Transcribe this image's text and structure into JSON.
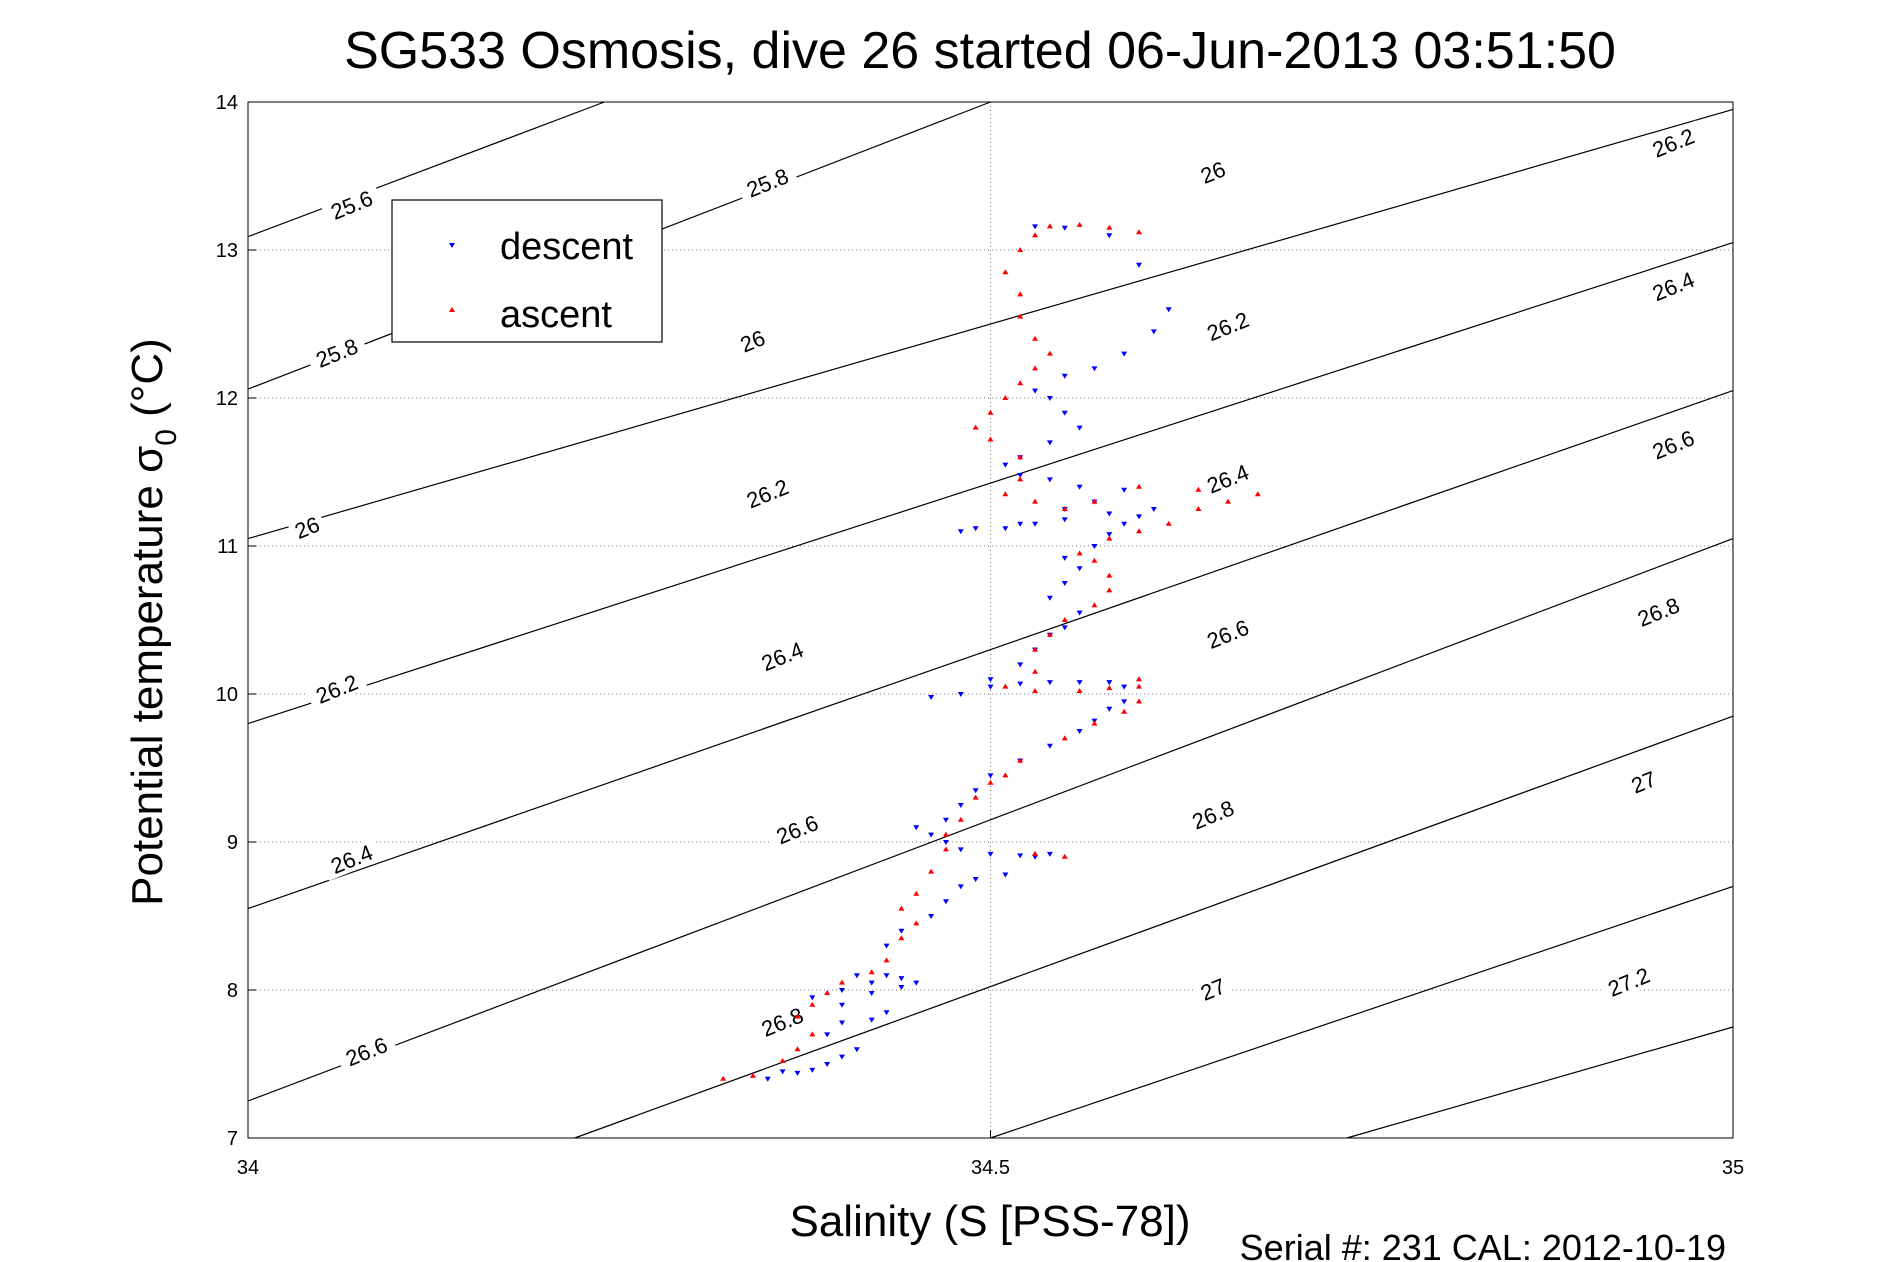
{
  "chart_data": {
    "type": "scatter",
    "title": "SG533 Osmosis, dive 26 started 06-Jun-2013 03:51:50",
    "xlabel": "Salinity (S [PSS-78])",
    "ylabel_main": "Potential temperature ",
    "ylabel_sigma": "σ",
    "ylabel_sub": "0",
    "ylabel_unit": " (°C)",
    "xlim": [
      34,
      35
    ],
    "ylim": [
      7,
      14
    ],
    "xticks": [
      "34",
      "34.5",
      "35"
    ],
    "yticks": [
      "7",
      "8",
      "9",
      "10",
      "11",
      "12",
      "13",
      "14"
    ],
    "grid": true,
    "legend_position": "top-left",
    "series": [
      {
        "name": "descent",
        "color": "#0000ff",
        "marker": "triangle-down",
        "points": [
          [
            34.35,
            7.4
          ],
          [
            34.36,
            7.45
          ],
          [
            34.37,
            7.44
          ],
          [
            34.38,
            7.46
          ],
          [
            34.39,
            7.5
          ],
          [
            34.4,
            7.55
          ],
          [
            34.41,
            7.6
          ],
          [
            34.39,
            7.7
          ],
          [
            34.4,
            7.78
          ],
          [
            34.42,
            7.8
          ],
          [
            34.43,
            7.85
          ],
          [
            34.4,
            7.9
          ],
          [
            34.38,
            7.95
          ],
          [
            34.4,
            8.0
          ],
          [
            34.42,
            7.98
          ],
          [
            34.44,
            8.02
          ],
          [
            34.45,
            8.05
          ],
          [
            34.44,
            8.08
          ],
          [
            34.43,
            8.1
          ],
          [
            34.42,
            8.05
          ],
          [
            34.41,
            8.1
          ],
          [
            34.43,
            8.3
          ],
          [
            34.44,
            8.4
          ],
          [
            34.46,
            8.5
          ],
          [
            34.47,
            8.6
          ],
          [
            34.48,
            8.7
          ],
          [
            34.49,
            8.75
          ],
          [
            34.51,
            8.78
          ],
          [
            34.53,
            8.9
          ],
          [
            34.54,
            8.92
          ],
          [
            34.52,
            8.91
          ],
          [
            34.5,
            8.92
          ],
          [
            34.48,
            8.95
          ],
          [
            34.47,
            9.0
          ],
          [
            34.46,
            9.05
          ],
          [
            34.45,
            9.1
          ],
          [
            34.47,
            9.15
          ],
          [
            34.48,
            9.25
          ],
          [
            34.49,
            9.35
          ],
          [
            34.5,
            9.45
          ],
          [
            34.52,
            9.55
          ],
          [
            34.54,
            9.65
          ],
          [
            34.56,
            9.75
          ],
          [
            34.57,
            9.82
          ],
          [
            34.58,
            9.9
          ],
          [
            34.59,
            9.95
          ],
          [
            34.59,
            10.05
          ],
          [
            34.58,
            10.08
          ],
          [
            34.56,
            10.08
          ],
          [
            34.54,
            10.08
          ],
          [
            34.52,
            10.07
          ],
          [
            34.5,
            10.05
          ],
          [
            34.48,
            10.0
          ],
          [
            34.46,
            9.98
          ],
          [
            34.5,
            10.1
          ],
          [
            34.52,
            10.2
          ],
          [
            34.53,
            10.3
          ],
          [
            34.54,
            10.4
          ],
          [
            34.55,
            10.45
          ],
          [
            34.56,
            10.55
          ],
          [
            34.54,
            10.65
          ],
          [
            34.55,
            10.75
          ],
          [
            34.56,
            10.85
          ],
          [
            34.55,
            10.92
          ],
          [
            34.57,
            11.0
          ],
          [
            34.58,
            11.08
          ],
          [
            34.59,
            11.15
          ],
          [
            34.6,
            11.2
          ],
          [
            34.61,
            11.25
          ],
          [
            34.58,
            11.22
          ],
          [
            34.55,
            11.18
          ],
          [
            34.52,
            11.15
          ],
          [
            34.49,
            11.12
          ],
          [
            34.48,
            11.1
          ],
          [
            34.51,
            11.12
          ],
          [
            34.53,
            11.15
          ],
          [
            34.55,
            11.25
          ],
          [
            34.57,
            11.3
          ],
          [
            34.59,
            11.38
          ],
          [
            34.56,
            11.4
          ],
          [
            34.54,
            11.45
          ],
          [
            34.52,
            11.48
          ],
          [
            34.51,
            11.55
          ],
          [
            34.52,
            11.6
          ],
          [
            34.54,
            11.7
          ],
          [
            34.56,
            11.8
          ],
          [
            34.55,
            11.9
          ],
          [
            34.54,
            12.0
          ],
          [
            34.53,
            12.05
          ],
          [
            34.55,
            12.15
          ],
          [
            34.57,
            12.2
          ],
          [
            34.59,
            12.3
          ],
          [
            34.61,
            12.45
          ],
          [
            34.62,
            12.6
          ],
          [
            34.6,
            12.9
          ],
          [
            34.58,
            13.1
          ],
          [
            34.55,
            13.15
          ],
          [
            34.53,
            13.16
          ]
        ]
      },
      {
        "name": "ascent",
        "color": "#ff0000",
        "marker": "triangle-up",
        "points": [
          [
            34.32,
            7.4
          ],
          [
            34.34,
            7.42
          ],
          [
            34.36,
            7.52
          ],
          [
            34.37,
            7.6
          ],
          [
            34.38,
            7.7
          ],
          [
            34.37,
            7.82
          ],
          [
            34.38,
            7.9
          ],
          [
            34.39,
            7.98
          ],
          [
            34.4,
            8.05
          ],
          [
            34.42,
            8.12
          ],
          [
            34.43,
            8.2
          ],
          [
            34.44,
            8.35
          ],
          [
            34.45,
            8.45
          ],
          [
            34.44,
            8.55
          ],
          [
            34.45,
            8.65
          ],
          [
            34.46,
            8.8
          ],
          [
            34.47,
            8.95
          ],
          [
            34.47,
            9.05
          ],
          [
            34.48,
            9.15
          ],
          [
            34.49,
            9.3
          ],
          [
            34.5,
            9.4
          ],
          [
            34.51,
            9.45
          ],
          [
            34.53,
            8.92
          ],
          [
            34.55,
            8.9
          ],
          [
            34.52,
            9.55
          ],
          [
            34.55,
            9.7
          ],
          [
            34.57,
            9.8
          ],
          [
            34.59,
            9.88
          ],
          [
            34.6,
            9.95
          ],
          [
            34.6,
            10.05
          ],
          [
            34.6,
            10.1
          ],
          [
            34.58,
            10.04
          ],
          [
            34.56,
            10.02
          ],
          [
            34.53,
            10.02
          ],
          [
            34.51,
            10.05
          ],
          [
            34.53,
            10.15
          ],
          [
            34.53,
            10.3
          ],
          [
            34.54,
            10.4
          ],
          [
            34.55,
            10.5
          ],
          [
            34.57,
            10.6
          ],
          [
            34.58,
            10.7
          ],
          [
            34.58,
            10.8
          ],
          [
            34.57,
            10.9
          ],
          [
            34.56,
            10.95
          ],
          [
            34.58,
            11.05
          ],
          [
            34.6,
            11.1
          ],
          [
            34.62,
            11.15
          ],
          [
            34.64,
            11.25
          ],
          [
            34.66,
            11.3
          ],
          [
            34.68,
            11.35
          ],
          [
            34.64,
            11.38
          ],
          [
            34.6,
            11.4
          ],
          [
            34.57,
            11.3
          ],
          [
            34.55,
            11.25
          ],
          [
            34.53,
            11.3
          ],
          [
            34.51,
            11.35
          ],
          [
            34.52,
            11.45
          ],
          [
            34.52,
            11.6
          ],
          [
            34.5,
            11.72
          ],
          [
            34.49,
            11.8
          ],
          [
            34.5,
            11.9
          ],
          [
            34.51,
            12.0
          ],
          [
            34.52,
            12.1
          ],
          [
            34.53,
            12.2
          ],
          [
            34.54,
            12.3
          ],
          [
            34.53,
            12.4
          ],
          [
            34.52,
            12.55
          ],
          [
            34.52,
            12.7
          ],
          [
            34.51,
            12.85
          ],
          [
            34.52,
            13.0
          ],
          [
            34.53,
            13.1
          ],
          [
            34.54,
            13.16
          ],
          [
            34.56,
            13.17
          ],
          [
            34.58,
            13.15
          ],
          [
            34.6,
            13.12
          ]
        ]
      }
    ],
    "contours": [
      {
        "level": "25.6",
        "points": [
          [
            34.0,
            13.09
          ],
          [
            34.24,
            14.0
          ]
        ]
      },
      {
        "level": "25.8",
        "points": [
          [
            34.0,
            12.06
          ],
          [
            34.5,
            14.0
          ]
        ]
      },
      {
        "level": "26",
        "points": [
          [
            34.0,
            11.05
          ],
          [
            35.0,
            13.95
          ]
        ]
      },
      {
        "level": "26.2",
        "points": [
          [
            34.0,
            9.8
          ],
          [
            35.0,
            13.05
          ]
        ]
      },
      {
        "level": "26.4",
        "points": [
          [
            34.0,
            8.55
          ],
          [
            35.0,
            12.05
          ]
        ]
      },
      {
        "level": "26.6",
        "points": [
          [
            34.0,
            7.25
          ],
          [
            35.0,
            11.05
          ]
        ]
      },
      {
        "level": "26.8",
        "points": [
          [
            34.22,
            7.0
          ],
          [
            35.0,
            9.85
          ]
        ]
      },
      {
        "level": "27",
        "points": [
          [
            34.5,
            7.0
          ],
          [
            35.0,
            8.7
          ]
        ]
      },
      {
        "level": "27.2",
        "points": [
          [
            34.74,
            7.0
          ],
          [
            35.0,
            7.75
          ]
        ]
      }
    ],
    "contour_labels": [
      {
        "text": "25.6",
        "x": 34.07,
        "y": 13.3,
        "angle": -22
      },
      {
        "text": "25.8",
        "x": 34.06,
        "y": 12.3,
        "angle": -22
      },
      {
        "text": "26",
        "x": 34.04,
        "y": 11.12,
        "angle": -22
      },
      {
        "text": "26.2",
        "x": 34.06,
        "y": 10.03,
        "angle": -22
      },
      {
        "text": "26.4",
        "x": 34.07,
        "y": 8.88,
        "angle": -22
      },
      {
        "text": "26.6",
        "x": 34.08,
        "y": 7.58,
        "angle": -22
      },
      {
        "text": "25.8",
        "x": 34.35,
        "y": 13.45,
        "angle": -22
      },
      {
        "text": "26",
        "x": 34.34,
        "y": 12.38,
        "angle": -22
      },
      {
        "text": "26.2",
        "x": 34.35,
        "y": 11.35,
        "angle": -22
      },
      {
        "text": "26.4",
        "x": 34.36,
        "y": 10.25,
        "angle": -22
      },
      {
        "text": "26.6",
        "x": 34.37,
        "y": 9.08,
        "angle": -22
      },
      {
        "text": "26.8",
        "x": 34.36,
        "y": 7.78,
        "angle": -22
      },
      {
        "text": "26",
        "x": 34.65,
        "y": 13.52,
        "angle": -22
      },
      {
        "text": "26.2",
        "x": 34.66,
        "y": 12.48,
        "angle": -22
      },
      {
        "text": "26.4",
        "x": 34.66,
        "y": 11.45,
        "angle": -22
      },
      {
        "text": "26.6",
        "x": 34.66,
        "y": 10.4,
        "angle": -22
      },
      {
        "text": "26.8",
        "x": 34.65,
        "y": 9.18,
        "angle": -22
      },
      {
        "text": "27",
        "x": 34.65,
        "y": 8.0,
        "angle": -22
      },
      {
        "text": "26.2",
        "x": 34.96,
        "y": 13.72,
        "angle": -22
      },
      {
        "text": "26.4",
        "x": 34.96,
        "y": 12.75,
        "angle": -22
      },
      {
        "text": "26.6",
        "x": 34.96,
        "y": 11.68,
        "angle": -22
      },
      {
        "text": "26.8",
        "x": 34.95,
        "y": 10.55,
        "angle": -22
      },
      {
        "text": "27",
        "x": 34.94,
        "y": 9.4,
        "angle": -22
      },
      {
        "text": "27.2",
        "x": 34.93,
        "y": 8.05,
        "angle": -22
      }
    ]
  },
  "footer": {
    "serial": "Serial #: 231  CAL: 2012-10-19"
  }
}
